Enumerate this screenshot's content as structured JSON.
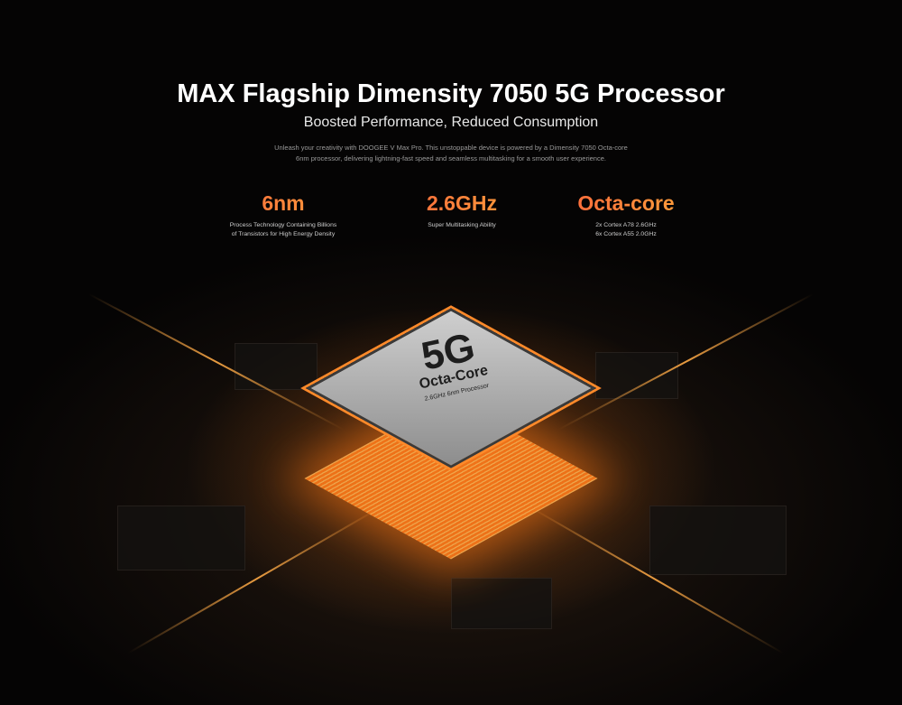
{
  "header": {
    "title": "MAX Flagship Dimensity 7050 5G Processor",
    "subtitle": "Boosted Performance, Reduced Consumption",
    "description_line1": "Unleash your creativity with DOOGEE V Max Pro. This unstoppable device is powered by a Dimensity 7050 Octa-core",
    "description_line2": "6nm processor, delivering lightning-fast speed and seamless multitasking for a smooth user experience."
  },
  "specs": [
    {
      "value": "6nm",
      "line1": "Process Technology Containing Billions",
      "line2": "of Transistors for High Energy Density"
    },
    {
      "value": "2.6GHz",
      "line1": "Super Multitasking Ability",
      "line2": ""
    },
    {
      "value": "Octa-core",
      "line1": "2x Cortex A78 2.6GHz",
      "line2": "6x Cortex A55 2.0GHz"
    }
  ],
  "chip": {
    "big": "5G",
    "name": "Octa-Core",
    "detail": "2.6GHz 6nm Processor"
  },
  "colors": {
    "accent_start": "#ff5a3c",
    "accent_end": "#ffb03a",
    "glow": "#ff7a1a"
  }
}
